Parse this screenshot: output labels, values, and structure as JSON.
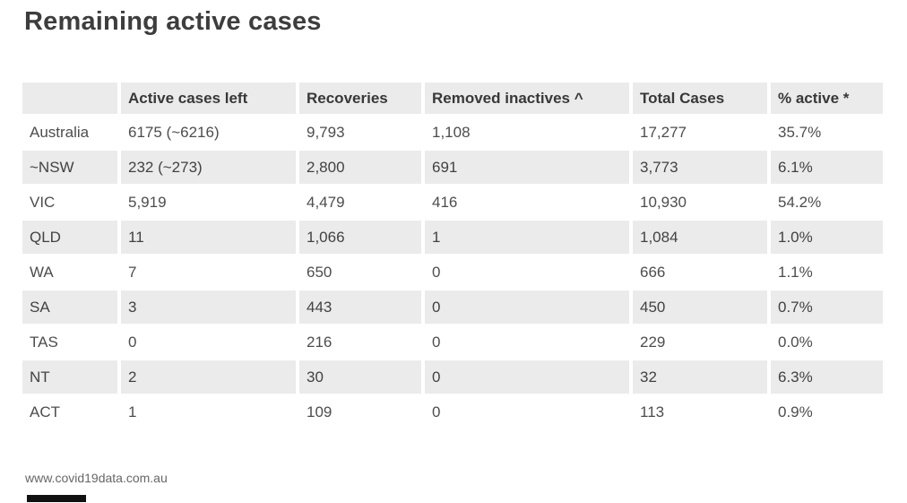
{
  "title": "Remaining active cases",
  "chart_data": {
    "type": "table",
    "title": "Remaining active cases",
    "columns": [
      "",
      "Active cases left",
      "Recoveries",
      "Removed inactives ^",
      "Total Cases",
      "% active *"
    ],
    "rows": [
      {
        "label": "Australia",
        "values": [
          "6175 (~6216)",
          "9,793",
          "1,108",
          "17,277",
          "35.7%"
        ]
      },
      {
        "label": "~NSW",
        "values": [
          "232 (~273)",
          "2,800",
          "691",
          "3,773",
          "6.1%"
        ]
      },
      {
        "label": "VIC",
        "values": [
          "5,919",
          "4,479",
          "416",
          "10,930",
          "54.2%"
        ]
      },
      {
        "label": "QLD",
        "values": [
          "11",
          "1,066",
          "1",
          "1,084",
          "1.0%"
        ]
      },
      {
        "label": "WA",
        "values": [
          "7",
          "650",
          "0",
          "666",
          "1.1%"
        ]
      },
      {
        "label": "SA",
        "values": [
          "3",
          "443",
          "0",
          "450",
          "0.7%"
        ]
      },
      {
        "label": "TAS",
        "values": [
          "0",
          "216",
          "0",
          "229",
          "0.0%"
        ]
      },
      {
        "label": "NT",
        "values": [
          "2",
          "30",
          "0",
          "32",
          "6.3%"
        ]
      },
      {
        "label": "ACT",
        "values": [
          "1",
          "109",
          "0",
          "113",
          "0.9%"
        ]
      }
    ],
    "layout": {
      "striped_rows": true,
      "stripe_color": "#ebebeb",
      "grid": false
    }
  },
  "footer": {
    "source": "www.covid19data.com.au"
  },
  "colors": {
    "stripe_background": "#ebebeb",
    "title_text": "#3d3d3d",
    "body_text": "#4d4d4d",
    "footer_text": "#666666",
    "brand_bar": "#111111"
  }
}
